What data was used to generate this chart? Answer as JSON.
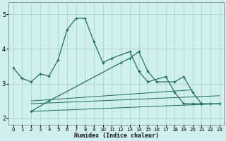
{
  "xlabel": "Humidex (Indice chaleur)",
  "background_color": "#cff0ec",
  "grid_color": "#9fcfca",
  "line_color": "#1a6b58",
  "curve1_x": [
    0,
    1,
    2,
    3,
    4,
    5,
    6,
    7,
    8,
    9,
    10,
    11,
    13,
    14,
    15,
    17,
    18,
    19,
    20,
    21
  ],
  "curve1_y": [
    3.45,
    3.15,
    3.05,
    3.28,
    3.22,
    3.68,
    4.55,
    4.88,
    4.88,
    4.2,
    3.6,
    3.73,
    3.92,
    3.35,
    3.05,
    3.2,
    2.75,
    2.42,
    2.42,
    2.42
  ],
  "curve2_x": [
    2,
    4,
    12,
    13,
    14,
    15,
    16,
    18,
    19,
    20,
    21,
    22,
    23
  ],
  "curve2_y": [
    2.2,
    2.5,
    3.6,
    3.73,
    3.92,
    3.35,
    3.05,
    3.05,
    3.2,
    2.75,
    2.42,
    2.42,
    2.42
  ],
  "trend1_x": [
    2,
    20
  ],
  "trend1_y": [
    2.5,
    2.82
  ],
  "trend2_x": [
    2,
    23
  ],
  "trend2_y": [
    2.42,
    2.65
  ],
  "trend3_x": [
    2,
    23
  ],
  "trend3_y": [
    2.2,
    2.42
  ],
  "ylim": [
    1.82,
    5.35
  ],
  "xlim": [
    -0.5,
    23.5
  ],
  "yticks": [
    2,
    3,
    4,
    5
  ],
  "xticks": [
    0,
    1,
    2,
    3,
    4,
    5,
    6,
    7,
    8,
    9,
    10,
    11,
    12,
    13,
    14,
    15,
    16,
    17,
    18,
    19,
    20,
    21,
    22,
    23
  ],
  "xlabel_fontsize": 6,
  "tick_labelsize": 5
}
